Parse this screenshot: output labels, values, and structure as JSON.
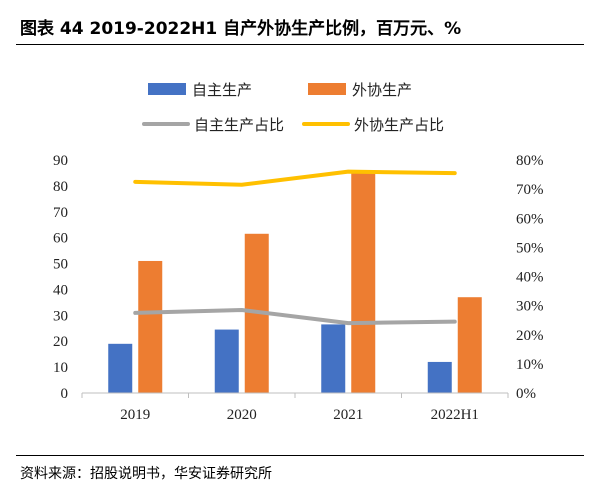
{
  "title": "图表 44 2019-2022H1 自产外协生产比例，百万元、%",
  "source": "资料来源：招股说明书，华安证券研究所",
  "chart_data": {
    "type": "bar",
    "categories": [
      "2019",
      "2020",
      "2021",
      "2022H1"
    ],
    "series": [
      {
        "name": "自主生产",
        "type": "bar",
        "axis": "left",
        "color": "#4472C4",
        "values": [
          19,
          24.5,
          26.5,
          12
        ]
      },
      {
        "name": "外协生产",
        "type": "bar",
        "axis": "left",
        "color": "#ED7D31",
        "values": [
          51,
          61.5,
          85,
          37
        ]
      },
      {
        "name": "自主生产占比",
        "type": "line",
        "axis": "right",
        "color": "#A5A5A5",
        "values": [
          27.5,
          28.5,
          24,
          24.5
        ]
      },
      {
        "name": "外协生产占比",
        "type": "line",
        "axis": "right",
        "color": "#FFC000",
        "values": [
          72.5,
          71.5,
          76,
          75.5
        ]
      }
    ],
    "ylim": [
      0,
      90
    ],
    "y_ticks": [
      "0",
      "10",
      "20",
      "30",
      "40",
      "50",
      "60",
      "70",
      "80",
      "90"
    ],
    "y2lim": [
      0,
      80
    ],
    "y2_ticks": [
      "0%",
      "10%",
      "20%",
      "30%",
      "40%",
      "50%",
      "60%",
      "70%",
      "80%"
    ],
    "legend_position": "top",
    "grid": false
  }
}
